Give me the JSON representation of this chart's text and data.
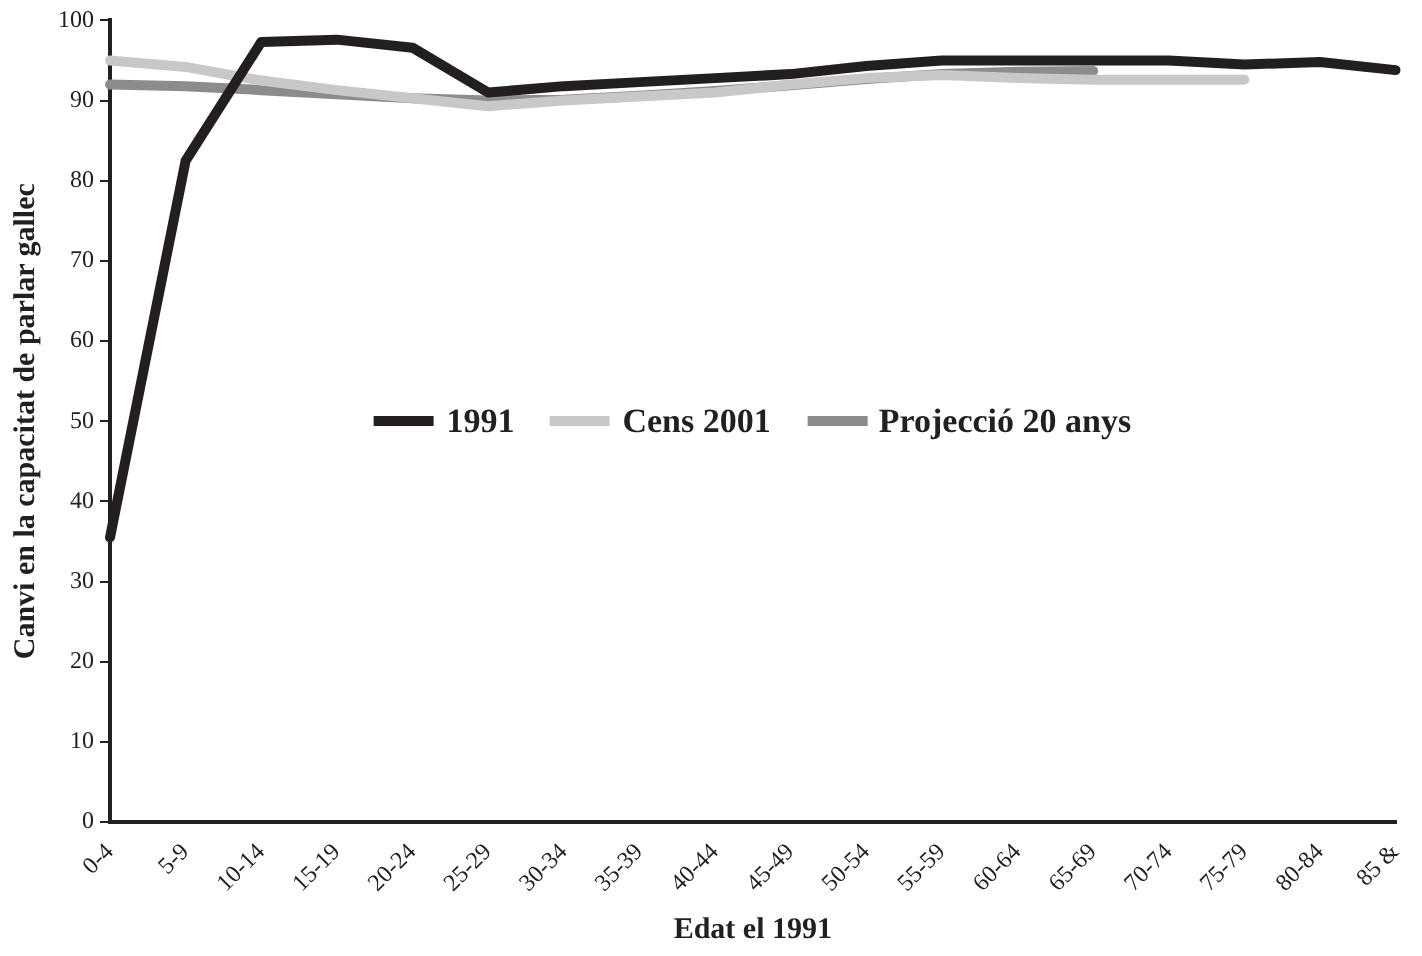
{
  "chart_data": {
    "type": "line",
    "xlabel": "Edat el 1991",
    "ylabel": "Canvi en la capacitat de parlar gallec",
    "categories": [
      "0-4",
      "5-9",
      "10-14",
      "15-19",
      "20-24",
      "25-29",
      "30-34",
      "35-39",
      "40-44",
      "45-49",
      "50-54",
      "55-59",
      "60-64",
      "65-69",
      "70-74",
      "75-79",
      "80-84",
      "85 &"
    ],
    "series": [
      {
        "name": "1991",
        "color": "#231f20",
        "values": [
          35.5,
          82.5,
          97.3,
          97.6,
          96.6,
          91,
          91.8,
          92.3,
          92.8,
          93.3,
          94.3,
          95,
          95,
          95,
          95,
          94.5,
          94.8,
          93.8
        ]
      },
      {
        "name": "Cens 2001",
        "color": "#c8c8c8",
        "values": [
          95,
          94.2,
          92.5,
          91.3,
          90.3,
          89.3,
          90,
          90.5,
          91,
          92,
          92.8,
          93.2,
          92.8,
          92.6,
          92.6,
          92.6,
          null,
          null
        ]
      },
      {
        "name": "Projecció 20 anys",
        "color": "#8c8c8c",
        "values": [
          92,
          91.8,
          91.3,
          90.8,
          90.3,
          90,
          90.1,
          90.6,
          91.2,
          91.9,
          92.7,
          93.3,
          93.6,
          93.7,
          null,
          null,
          null,
          null
        ]
      }
    ],
    "ylim": [
      0,
      100
    ],
    "yticks": [
      0,
      10,
      20,
      30,
      40,
      50,
      60,
      70,
      80,
      90,
      100
    ],
    "grid": false,
    "legend": "center",
    "marker": "none",
    "line_style": "solid"
  }
}
